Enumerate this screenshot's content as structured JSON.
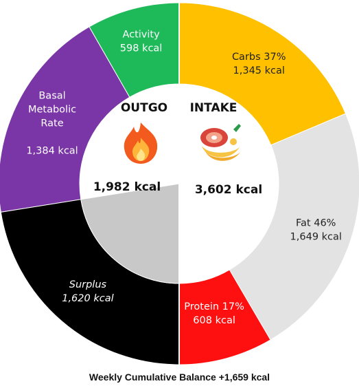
{
  "chart_data": {
    "type": "donut",
    "outgo": {
      "title": "OUTGO",
      "total_label": "1,982 kcal",
      "total": 1982,
      "segments": [
        {
          "key": "activity",
          "name": "Activity",
          "value": 598,
          "value_label": "598 kcal",
          "color": "#1eba5a",
          "text_color": "#ffffff"
        },
        {
          "key": "bmr",
          "name": "Basal Metabolic Rate",
          "name_lines": [
            "Basal",
            "Metabolic",
            "Rate"
          ],
          "value": 1384,
          "value_label": "1,384 kcal",
          "color": "#7a35a6",
          "text_color": "#ffffff"
        },
        {
          "key": "surplus",
          "name": "Surplus",
          "value": 1620,
          "value_label": "1,620 kcal",
          "color": "#000000",
          "text_color": "#ffffff",
          "italic": true
        }
      ]
    },
    "intake": {
      "title": "INTAKE",
      "total_label": "3,602 kcal",
      "total": 3602,
      "segments": [
        {
          "key": "carbs",
          "name": "Carbs 37%",
          "percent": 37,
          "value": 1345,
          "value_label": "1,345 kcal",
          "color": "#ffc000",
          "text_color": "#222222"
        },
        {
          "key": "fat",
          "name": "Fat 46%",
          "percent": 46,
          "value": 1649,
          "value_label": "1,649 kcal",
          "color": "#e3e3e3",
          "text_color": "#222222"
        },
        {
          "key": "protein",
          "name": "Protein 17%",
          "percent": 17,
          "value": 608,
          "value_label": "608 kcal",
          "color": "#ff1010",
          "text_color": "#ffffff"
        }
      ]
    },
    "center_colors": {
      "outgo_shaded": "#c8c8c8",
      "inner": "#ffffff"
    }
  },
  "icons": {
    "outgo": "fire-icon",
    "intake": "meat-banana-icon"
  },
  "footer": "Weekly Cumulative Balance +1,659 kcal"
}
